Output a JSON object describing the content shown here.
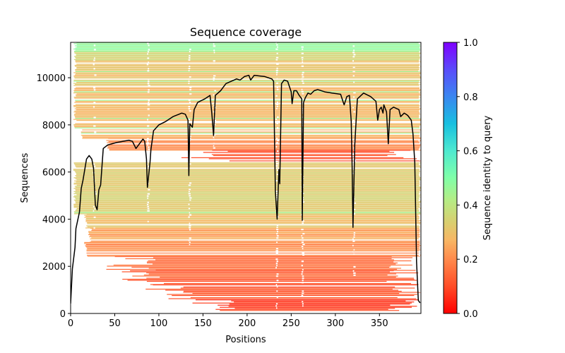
{
  "chart_data": {
    "type": "heatmap",
    "title": "Sequence coverage",
    "xlabel": "Positions",
    "ylabel": "Sequences",
    "xlim": [
      0,
      397
    ],
    "ylim": [
      0,
      11500
    ],
    "xticks": [
      0,
      50,
      100,
      150,
      200,
      250,
      300,
      350
    ],
    "yticks": [
      0,
      2000,
      4000,
      6000,
      8000,
      10000
    ],
    "grid": false,
    "colorbar": {
      "label": "Sequence identity to query",
      "colormap": "rainbow_r",
      "range": [
        0.0,
        1.0
      ],
      "ticks": [
        "0.0",
        "0.2",
        "0.4",
        "0.6",
        "0.8",
        "1.0"
      ],
      "stops": [
        {
          "v": 0.0,
          "color": "#ff0000"
        },
        {
          "v": 0.1,
          "color": "#ff4d27"
        },
        {
          "v": 0.2,
          "color": "#ff8a4c"
        },
        {
          "v": 0.27,
          "color": "#f8b664"
        },
        {
          "v": 0.33,
          "color": "#dccc6e"
        },
        {
          "v": 0.42,
          "color": "#b4ed86"
        },
        {
          "v": 0.5,
          "color": "#80ffa8"
        },
        {
          "v": 0.6,
          "color": "#4ee9d0"
        },
        {
          "v": 0.7,
          "color": "#18c0e0"
        },
        {
          "v": 0.8,
          "color": "#3a86f0"
        },
        {
          "v": 0.9,
          "color": "#5a4cfa"
        },
        {
          "v": 1.0,
          "color": "#8000ff"
        }
      ]
    },
    "coverage_bands": [
      {
        "y0": 11100,
        "y1": 11500,
        "x0": 3,
        "x1": 397,
        "identity": 0.47
      },
      {
        "y0": 10700,
        "y1": 11100,
        "x0": 3,
        "x1": 397,
        "identity": 0.36
      },
      {
        "y0": 9600,
        "y1": 10700,
        "x0": 3,
        "x1": 397,
        "identity": 0.3
      },
      {
        "y0": 7800,
        "y1": 9600,
        "x0": 3,
        "x1": 397,
        "identity": 0.28
      },
      {
        "y0": 7400,
        "y1": 7800,
        "x0": 10,
        "x1": 397,
        "identity": 0.26
      },
      {
        "y0": 6900,
        "y1": 7400,
        "x0": 40,
        "x1": 397,
        "identity": 0.2
      },
      {
        "y0": 6400,
        "y1": 6900,
        "x0": 120,
        "x1": 397,
        "identity": 0.1
      },
      {
        "y0": 4200,
        "y1": 6400,
        "x0": 3,
        "x1": 397,
        "identity": 0.33
      },
      {
        "y0": 3600,
        "y1": 4200,
        "x0": 15,
        "x1": 397,
        "identity": 0.3
      },
      {
        "y0": 3000,
        "y1": 3600,
        "x0": 20,
        "x1": 397,
        "identity": 0.24
      },
      {
        "y0": 2400,
        "y1": 3000,
        "x0": 15,
        "x1": 397,
        "identity": 0.2
      },
      {
        "y0": 1800,
        "y1": 2400,
        "x0": 40,
        "x1": 397,
        "identity": 0.16
      },
      {
        "y0": 1200,
        "y1": 1800,
        "x0": 55,
        "x1": 397,
        "identity": 0.13
      },
      {
        "y0": 600,
        "y1": 1200,
        "x0": 80,
        "x1": 397,
        "identity": 0.11
      },
      {
        "y0": 100,
        "y1": 600,
        "x0": 130,
        "x1": 397,
        "identity": 0.08
      }
    ],
    "series": [
      {
        "name": "coverage",
        "color": "#000000",
        "points": [
          [
            0,
            420
          ],
          [
            2,
            1900
          ],
          [
            5,
            2800
          ],
          [
            6,
            3600
          ],
          [
            10,
            4300
          ],
          [
            12,
            5300
          ],
          [
            14,
            5650
          ],
          [
            18,
            6550
          ],
          [
            21,
            6700
          ],
          [
            24,
            6550
          ],
          [
            26,
            6150
          ],
          [
            28,
            4600
          ],
          [
            30,
            4400
          ],
          [
            32,
            5250
          ],
          [
            34,
            5450
          ],
          [
            37,
            7000
          ],
          [
            42,
            7150
          ],
          [
            52,
            7250
          ],
          [
            66,
            7350
          ],
          [
            70,
            7300
          ],
          [
            74,
            7000
          ],
          [
            77,
            7150
          ],
          [
            82,
            7400
          ],
          [
            84,
            7300
          ],
          [
            86,
            6550
          ],
          [
            87,
            5350
          ],
          [
            90,
            6400
          ],
          [
            91,
            6950
          ],
          [
            94,
            7750
          ],
          [
            100,
            8000
          ],
          [
            108,
            8150
          ],
          [
            116,
            8350
          ],
          [
            126,
            8500
          ],
          [
            130,
            8450
          ],
          [
            133,
            8200
          ],
          [
            134,
            5850
          ],
          [
            135,
            8050
          ],
          [
            138,
            7900
          ],
          [
            140,
            8650
          ],
          [
            144,
            8950
          ],
          [
            152,
            9100
          ],
          [
            158,
            9250
          ],
          [
            160,
            8500
          ],
          [
            162,
            7550
          ],
          [
            164,
            9250
          ],
          [
            170,
            9450
          ],
          [
            176,
            9750
          ],
          [
            188,
            9950
          ],
          [
            192,
            9900
          ],
          [
            197,
            10050
          ],
          [
            202,
            10100
          ],
          [
            204,
            9900
          ],
          [
            208,
            10100
          ],
          [
            220,
            10050
          ],
          [
            228,
            9950
          ],
          [
            230,
            9850
          ],
          [
            232,
            5200
          ],
          [
            233,
            4600
          ],
          [
            234,
            4000
          ],
          [
            236,
            6100
          ],
          [
            237,
            5500
          ],
          [
            239,
            9750
          ],
          [
            242,
            9900
          ],
          [
            246,
            9850
          ],
          [
            250,
            9400
          ],
          [
            251,
            8900
          ],
          [
            253,
            9450
          ],
          [
            256,
            9450
          ],
          [
            259,
            9250
          ],
          [
            262,
            9100
          ],
          [
            262.5,
            3950
          ],
          [
            264,
            8950
          ],
          [
            266,
            9150
          ],
          [
            269,
            9350
          ],
          [
            272,
            9300
          ],
          [
            276,
            9450
          ],
          [
            280,
            9500
          ],
          [
            288,
            9400
          ],
          [
            296,
            9350
          ],
          [
            306,
            9300
          ],
          [
            309,
            8950
          ],
          [
            310,
            8850
          ],
          [
            313,
            9200
          ],
          [
            316,
            9250
          ],
          [
            318,
            8150
          ],
          [
            319,
            6400
          ],
          [
            320,
            3650
          ],
          [
            322,
            7150
          ],
          [
            325,
            9100
          ],
          [
            332,
            9350
          ],
          [
            340,
            9200
          ],
          [
            346,
            9000
          ],
          [
            348,
            8200
          ],
          [
            350,
            8650
          ],
          [
            352,
            8750
          ],
          [
            354,
            8500
          ],
          [
            355,
            8850
          ],
          [
            358,
            8550
          ],
          [
            360,
            7200
          ],
          [
            362,
            8650
          ],
          [
            366,
            8750
          ],
          [
            372,
            8650
          ],
          [
            374,
            8350
          ],
          [
            378,
            8500
          ],
          [
            380,
            8450
          ],
          [
            382,
            8400
          ],
          [
            386,
            8200
          ],
          [
            388,
            7600
          ],
          [
            390,
            6400
          ],
          [
            392,
            2200
          ],
          [
            394,
            550
          ],
          [
            396,
            450
          ]
        ]
      }
    ]
  }
}
